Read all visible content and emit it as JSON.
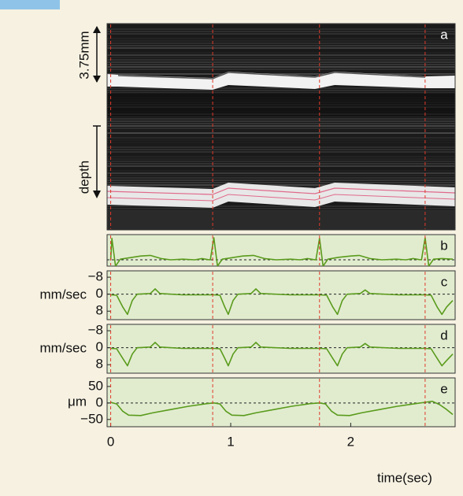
{
  "chart_data": [
    {
      "type": "image",
      "label": "a",
      "annotations": [
        "3.75mm",
        "depth"
      ],
      "xlim": [
        -0.03,
        2.87
      ],
      "vlines": [
        0,
        0.85,
        1.74,
        2.62
      ]
    },
    {
      "type": "line",
      "label": "b",
      "xlim": [
        -0.03,
        2.87
      ],
      "ylim": [
        -0.5,
        2
      ],
      "baseline": 0,
      "vlines": [
        0,
        0.85,
        1.74,
        2.62
      ],
      "x": [
        0,
        0.01,
        0.04,
        0.08,
        0.15,
        0.25,
        0.33,
        0.42,
        0.5,
        0.6,
        0.7,
        0.76,
        0.81,
        0.83,
        0.86,
        0.89,
        0.93,
        1.0,
        1.1,
        1.19,
        1.28,
        1.38,
        1.5,
        1.58,
        1.64,
        1.69,
        1.71,
        1.74,
        1.77,
        1.81,
        1.9,
        2.0,
        2.07,
        2.16,
        2.26,
        2.38,
        2.46,
        2.52,
        2.57,
        2.59,
        2.62,
        2.65,
        2.69,
        2.76,
        2.85
      ],
      "series": [
        {
          "color": "#5a9b1c",
          "values": [
            0,
            1.7,
            -0.5,
            0.05,
            0.15,
            0.3,
            0.35,
            0.1,
            0,
            0.05,
            0,
            0.1,
            0.02,
            0,
            1.75,
            -0.5,
            0.05,
            0.15,
            0.3,
            0.35,
            0.1,
            0,
            0.05,
            0,
            0.1,
            0.02,
            0,
            1.7,
            -0.5,
            0.05,
            0.2,
            0.3,
            0.35,
            0.1,
            0,
            0.05,
            0,
            0.1,
            0.02,
            0,
            1.75,
            -0.5,
            0.05,
            0.1,
            0.05
          ]
        }
      ]
    },
    {
      "type": "line",
      "label": "c",
      "ylabel": "mm/sec",
      "xlim": [
        -0.03,
        2.87
      ],
      "ylim": [
        12,
        -11
      ],
      "yticks": [
        {
          "value": -8,
          "label": "−8"
        },
        0,
        8
      ],
      "baseline": 0,
      "vlines": [
        0,
        0.85,
        1.74,
        2.62
      ],
      "x": [
        0,
        0.05,
        0.1,
        0.14,
        0.18,
        0.22,
        0.33,
        0.37,
        0.41,
        0.6,
        0.86,
        0.91,
        0.95,
        0.98,
        1.02,
        1.06,
        1.17,
        1.21,
        1.25,
        1.5,
        1.74,
        1.8,
        1.85,
        1.89,
        1.93,
        1.97,
        2.08,
        2.12,
        2.16,
        2.4,
        2.62,
        2.67,
        2.72,
        2.76,
        2.8,
        2.85
      ],
      "series": [
        {
          "color": "#5a9b1c",
          "values": [
            0.3,
            0.5,
            6,
            9.5,
            3,
            0,
            -0.3,
            -2.5,
            -0.3,
            0.3,
            0.3,
            0.5,
            6,
            9.5,
            3,
            0,
            -0.3,
            -2.5,
            -0.3,
            0.3,
            0.3,
            0.5,
            6,
            9.5,
            3,
            0,
            -0.3,
            -2,
            -0.3,
            0.3,
            0.3,
            0.5,
            6,
            9.5,
            6,
            3
          ]
        }
      ]
    },
    {
      "type": "line",
      "label": "d",
      "ylabel": "mm/sec",
      "xlim": [
        -0.03,
        2.87
      ],
      "ylim": [
        12,
        -11
      ],
      "yticks": [
        {
          "value": -8,
          "label": "−8"
        },
        0,
        8
      ],
      "baseline": 0,
      "vlines": [
        0,
        0.85,
        1.74,
        2.62
      ],
      "x": [
        0,
        0.05,
        0.1,
        0.14,
        0.18,
        0.22,
        0.33,
        0.37,
        0.41,
        0.6,
        0.86,
        0.91,
        0.95,
        0.98,
        1.02,
        1.06,
        1.17,
        1.21,
        1.25,
        1.5,
        1.74,
        1.8,
        1.85,
        1.89,
        1.93,
        1.97,
        2.08,
        2.12,
        2.16,
        2.4,
        2.62,
        2.67,
        2.72,
        2.76,
        2.8,
        2.85
      ],
      "series": [
        {
          "color": "#5a9b1c",
          "values": [
            0.3,
            0.5,
            5,
            8.5,
            3,
            0,
            -0.3,
            -2.5,
            -0.3,
            0.3,
            0.3,
            0.5,
            5,
            8.5,
            3,
            0,
            -0.3,
            -2.5,
            -0.3,
            0.3,
            0.3,
            0.5,
            5,
            8.5,
            3,
            0,
            -0.3,
            -2,
            -0.3,
            0.3,
            0.3,
            0.5,
            5,
            8.5,
            6,
            3
          ]
        }
      ]
    },
    {
      "type": "line",
      "label": "e",
      "ylabel": "μm",
      "xlabel": "time(sec)",
      "xlim": [
        -0.03,
        2.87
      ],
      "ylim": [
        -72,
        76
      ],
      "yticks": [
        50,
        0,
        {
          "value": -50,
          "label": "−50"
        }
      ],
      "xticks": [
        0,
        1,
        2
      ],
      "baseline": 0,
      "vlines": [
        0,
        0.85,
        1.74,
        2.62
      ],
      "x": [
        0,
        0.05,
        0.1,
        0.15,
        0.25,
        0.35,
        0.5,
        0.65,
        0.8,
        0.86,
        0.91,
        0.96,
        1.01,
        1.11,
        1.21,
        1.36,
        1.51,
        1.66,
        1.74,
        1.79,
        1.84,
        1.89,
        1.99,
        2.09,
        2.24,
        2.39,
        2.54,
        2.62,
        2.68,
        2.74,
        2.8,
        2.85
      ],
      "series": [
        {
          "color": "#5a9b1c",
          "values": [
            2,
            -3,
            -25,
            -37,
            -38,
            -30,
            -20,
            -10,
            -2,
            0,
            -3,
            -25,
            -37,
            -38,
            -30,
            -20,
            -10,
            -2,
            0,
            -3,
            -25,
            -37,
            -38,
            -30,
            -20,
            -10,
            -2,
            2,
            5,
            -5,
            -20,
            -35
          ]
        }
      ]
    }
  ]
}
